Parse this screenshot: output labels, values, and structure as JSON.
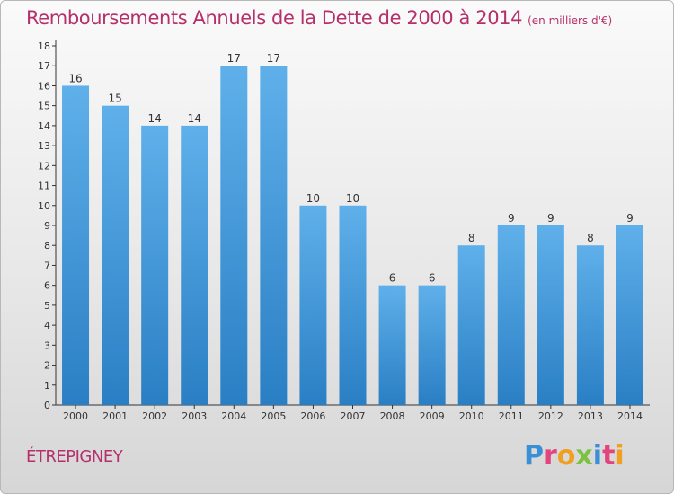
{
  "title": "Remboursements Annuels de la Dette de 2000 à 2014",
  "title_unit": "(en milliers d'€)",
  "commune": "ÉTREPIGNEY",
  "logo": {
    "text": "Proxiti",
    "letters": [
      {
        "char": "P",
        "color": "#3a8fd6"
      },
      {
        "char": "r",
        "color": "#e2457d"
      },
      {
        "char": "o",
        "color": "#f0a020"
      },
      {
        "char": "x",
        "color": "#7cc242"
      },
      {
        "char": "i",
        "color": "#3a8fd6"
      },
      {
        "char": "t",
        "color": "#e2457d"
      },
      {
        "char": "i",
        "color": "#f0a020"
      }
    ]
  },
  "colors": {
    "title": "#b5306a",
    "bar_top": "#5fb0ea",
    "bar_bottom": "#2a7fc4",
    "axis": "#333333"
  },
  "chart_data": {
    "type": "bar",
    "categories": [
      "2000",
      "2001",
      "2002",
      "2003",
      "2004",
      "2005",
      "2006",
      "2007",
      "2008",
      "2009",
      "2010",
      "2011",
      "2012",
      "2013",
      "2014"
    ],
    "values": [
      16,
      15,
      14,
      14,
      17,
      17,
      10,
      10,
      6,
      6,
      8,
      9,
      9,
      8,
      9
    ],
    "data_labels": [
      "16",
      "15",
      "14",
      "14",
      "17",
      "17",
      "10",
      "10",
      "6",
      "6",
      "8",
      "9",
      "9",
      "8",
      "9"
    ],
    "ylim": [
      0,
      18
    ],
    "yticks": [
      "0",
      "1",
      "2",
      "3",
      "4",
      "5",
      "6",
      "7",
      "8",
      "9",
      "10",
      "11",
      "12",
      "13",
      "14",
      "15",
      "16",
      "17",
      "18"
    ],
    "grid": false,
    "legend": "none"
  }
}
